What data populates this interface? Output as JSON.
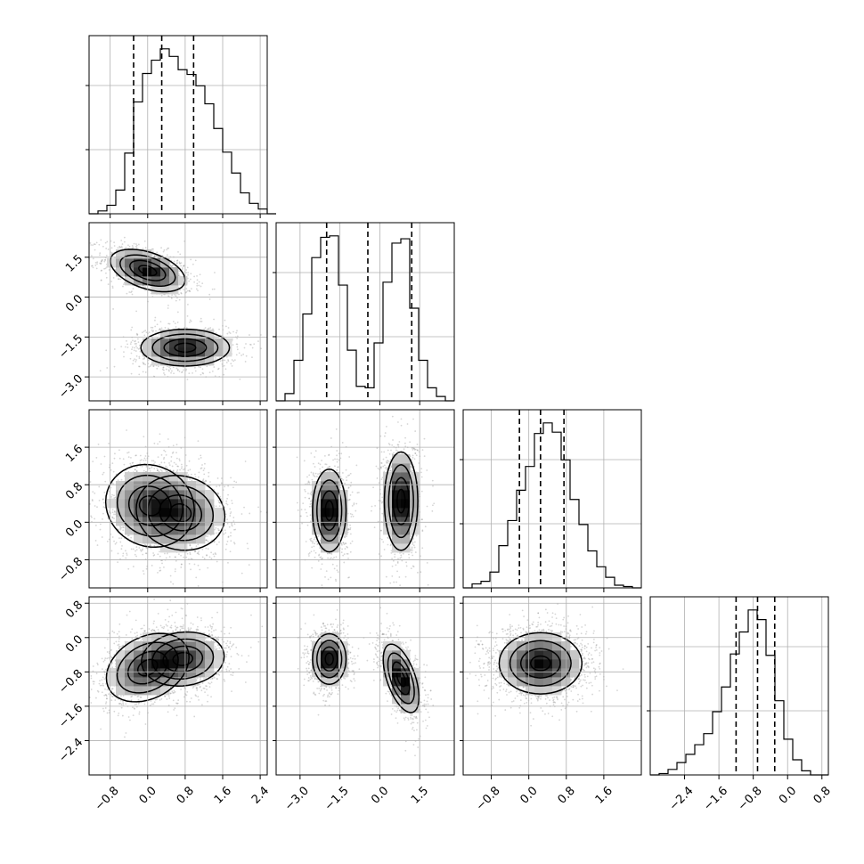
{
  "chart_data": {
    "type": "corner",
    "title": "",
    "parameters": 4,
    "grid": true,
    "ranges": [
      [
        -1.25,
        2.55
      ],
      [
        -3.9,
        2.8
      ],
      [
        -1.4,
        2.4
      ],
      [
        -3.2,
        0.95
      ]
    ],
    "ticks": [
      [
        -0.8,
        0.0,
        0.8,
        1.6,
        2.4
      ],
      [
        -3.0,
        -1.5,
        0.0,
        1.5
      ],
      [
        -0.8,
        0.0,
        0.8,
        1.6
      ],
      [
        -2.4,
        -1.6,
        -0.8,
        0.0,
        0.8
      ]
    ],
    "tick_labels": [
      [
        "−0.8",
        "0.0",
        "0.8",
        "1.6",
        "2.4"
      ],
      [
        "−3.0",
        "−1.5",
        "0.0",
        "1.5"
      ],
      [
        "−0.8",
        "0.0",
        "0.8",
        "1.6"
      ],
      [
        "−2.4",
        "−1.6",
        "−0.8",
        "0.0",
        "0.8"
      ]
    ],
    "quantiles": [
      [
        -0.3,
        0.3,
        0.98
      ],
      [
        -2.0,
        -0.45,
        1.2
      ],
      [
        -0.2,
        0.25,
        0.75
      ],
      [
        -1.2,
        -0.7,
        -0.3
      ]
    ],
    "histograms": [
      {
        "edges_start": -1.25,
        "bin_width": 0.19,
        "counts": [
          0,
          3,
          9,
          25,
          64,
          118,
          148,
          162,
          174,
          166,
          152,
          147,
          135,
          116,
          90,
          65,
          43,
          22,
          11,
          5,
          0
        ]
      },
      {
        "edges_start": -3.9,
        "bin_width": 0.335,
        "counts": [
          0,
          5,
          28,
          60,
          99,
          113,
          114,
          80,
          35,
          10,
          9,
          40,
          82,
          109,
          112,
          64,
          28,
          9,
          3,
          0
        ]
      },
      {
        "edges_start": -1.4,
        "bin_width": 0.19,
        "counts": [
          0,
          3,
          5,
          12,
          32,
          51,
          74,
          92,
          117,
          125,
          118,
          97,
          67,
          48,
          28,
          16,
          8,
          2,
          1,
          0
        ]
      },
      {
        "edges_start": -3.2,
        "bin_width": 0.2075,
        "counts": [
          0,
          1,
          4,
          9,
          15,
          22,
          30,
          46,
          64,
          88,
          104,
          120,
          113,
          87,
          54,
          26,
          11,
          3,
          0,
          0
        ]
      }
    ],
    "modes": [
      {
        "x_param": 0,
        "y_param": 1,
        "components": [
          [
            0.0,
            1.0,
            0.38,
            0.38,
            -0.45,
            0.5
          ],
          [
            0.8,
            -1.9,
            0.45,
            0.33,
            0.0,
            0.5
          ]
        ]
      },
      {
        "x_param": 0,
        "y_param": 2,
        "components": [
          [
            0.05,
            0.35,
            0.45,
            0.42,
            -0.1,
            0.5
          ],
          [
            0.7,
            0.2,
            0.45,
            0.38,
            -0.1,
            0.5
          ]
        ]
      },
      {
        "x_param": 1,
        "y_param": 2,
        "components": [
          [
            -1.9,
            0.25,
            0.3,
            0.42,
            0.0,
            0.5
          ],
          [
            0.8,
            0.45,
            0.3,
            0.5,
            0.0,
            0.5
          ]
        ]
      },
      {
        "x_param": 0,
        "y_param": 3,
        "components": [
          [
            0.0,
            -0.7,
            0.42,
            0.38,
            0.3,
            0.5
          ],
          [
            0.75,
            -0.5,
            0.42,
            0.3,
            0.1,
            0.5
          ]
        ]
      },
      {
        "x_param": 1,
        "y_param": 3,
        "components": [
          [
            -1.9,
            -0.5,
            0.3,
            0.28,
            0.0,
            0.5
          ],
          [
            0.8,
            -0.95,
            0.32,
            0.38,
            -0.55,
            0.5
          ]
        ]
      },
      {
        "x_param": 2,
        "y_param": 3,
        "components": [
          [
            0.25,
            -0.6,
            0.42,
            0.34,
            0.0,
            1.0
          ]
        ]
      }
    ],
    "colors": {
      "frame": "#000000",
      "grid": "#b0b0b0",
      "scatter": "#8a8a8a",
      "density_dark": "#000000",
      "density_light": "#ffffff"
    }
  }
}
